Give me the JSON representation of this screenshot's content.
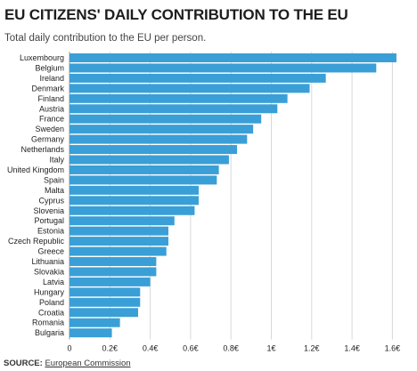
{
  "title": "EU CITIZENS' DAILY CONTRIBUTION TO THE EU",
  "subtitle": "Total daily contribution to the EU per person.",
  "source": {
    "label": "SOURCE:",
    "value": "European Commission"
  },
  "colors": {
    "bar": "#3a9fd6",
    "grid": "#d8d8d8",
    "axis": "#999999"
  },
  "chart_data": {
    "type": "bar",
    "orientation": "horizontal",
    "categories": [
      "Luxembourg",
      "Belgium",
      "Ireland",
      "Denmark",
      "Finland",
      "Austria",
      "France",
      "Sweden",
      "Germany",
      "Netherlands",
      "Italy",
      "United Kingdom",
      "Spain",
      "Malta",
      "Cyprus",
      "Slovenia",
      "Portugal",
      "Estonia",
      "Czech Republic",
      "Greece",
      "Lithuania",
      "Slovakia",
      "Latvia",
      "Hungary",
      "Poland",
      "Croatia",
      "Romania",
      "Bulgaria"
    ],
    "values": [
      1.62,
      1.52,
      1.27,
      1.19,
      1.08,
      1.03,
      0.95,
      0.91,
      0.88,
      0.83,
      0.79,
      0.74,
      0.73,
      0.64,
      0.64,
      0.62,
      0.52,
      0.49,
      0.49,
      0.48,
      0.43,
      0.43,
      0.4,
      0.35,
      0.35,
      0.34,
      0.25,
      0.21
    ],
    "ticks": [
      0,
      0.2,
      0.4,
      0.6,
      0.8,
      1,
      1.2,
      1.4,
      1.6
    ],
    "tick_labels": [
      "0",
      "0.2€",
      "0.4€",
      "0.6€",
      "0.8€",
      "1€",
      "1.2€",
      "1.4€",
      "1.6€"
    ],
    "xlim": [
      0,
      1.65
    ],
    "xlabel": "",
    "ylabel": "",
    "grid": true
  }
}
